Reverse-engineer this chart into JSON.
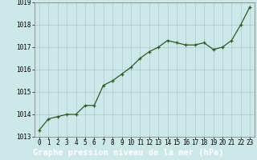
{
  "x": [
    0,
    1,
    2,
    3,
    4,
    5,
    6,
    7,
    8,
    9,
    10,
    11,
    12,
    13,
    14,
    15,
    16,
    17,
    18,
    19,
    20,
    21,
    22,
    23
  ],
  "y": [
    1013.3,
    1013.8,
    1013.9,
    1014.0,
    1014.0,
    1014.4,
    1014.4,
    1015.3,
    1015.5,
    1015.8,
    1016.1,
    1016.5,
    1016.8,
    1017.0,
    1017.3,
    1017.2,
    1017.1,
    1017.1,
    1017.2,
    1016.9,
    1017.0,
    1017.3,
    1018.0,
    1018.8
  ],
  "xlabel": "Graphe pression niveau de la mer (hPa)",
  "bg_color": "#cce8e8",
  "plot_bg_color": "#cce8e8",
  "line_color": "#2d5a27",
  "marker_color": "#2d5a27",
  "grid_color": "#aacccc",
  "border_color": "#888888",
  "xlabel_bg": "#2d5a27",
  "xlabel_fg": "#ffffff",
  "ylim_min": 1013.0,
  "ylim_max": 1019.0,
  "xlim_min": -0.5,
  "xlim_max": 23.5,
  "yticks": [
    1013,
    1014,
    1015,
    1016,
    1017,
    1018,
    1019
  ],
  "xticks": [
    0,
    1,
    2,
    3,
    4,
    5,
    6,
    7,
    8,
    9,
    10,
    11,
    12,
    13,
    14,
    15,
    16,
    17,
    18,
    19,
    20,
    21,
    22,
    23
  ],
  "tick_fontsize": 5.5,
  "xlabel_fontsize": 7.5,
  "ytick_fontsize": 5.5
}
